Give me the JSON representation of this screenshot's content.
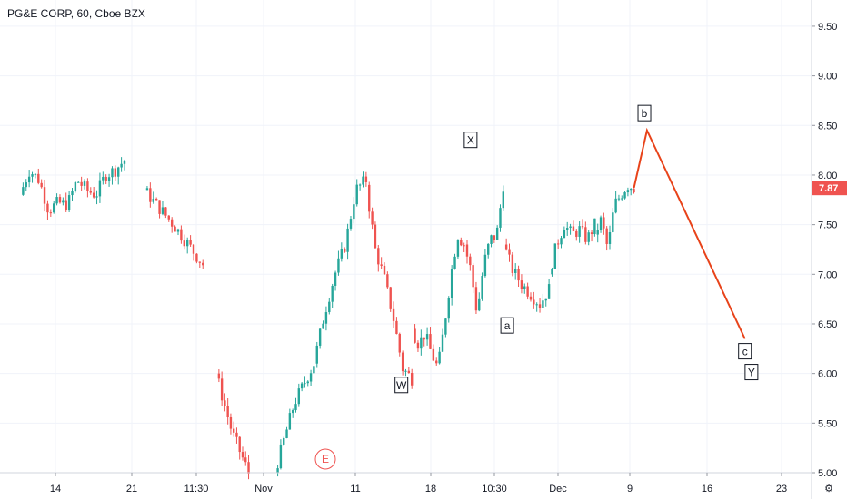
{
  "header": {
    "title": "PG&E CORP, 60, Cboe BZX"
  },
  "colors": {
    "up": "#26a69a",
    "down": "#ef5350",
    "projection": "#e8431a",
    "grid": "#f0f3fa",
    "badge": "#ef5350"
  },
  "chart_data": {
    "type": "candlestick",
    "title": "PG&E CORP, 60, Cboe BZX",
    "ylim": [
      5.0,
      9.6
    ],
    "y_ticks": [
      "5.00",
      "5.50",
      "6.00",
      "6.50",
      "7.00",
      "7.50",
      "8.00",
      "8.50",
      "9.00",
      "9.50"
    ],
    "x_ticks": [
      "14",
      "21",
      "11:30",
      "Nov",
      "11",
      "18",
      "10:30",
      "Dec",
      "9",
      "16",
      "23"
    ],
    "last_price": "7.87",
    "event_badge": "E",
    "segments": [
      {
        "start": 0,
        "end": 80,
        "values": [
          7.8,
          8.05,
          7.95,
          7.65,
          7.72,
          7.7,
          7.95,
          7.85,
          7.8,
          8.0,
          8.05,
          8.15
        ]
      },
      {
        "start": 95,
        "end": 140,
        "values": [
          7.85,
          7.5,
          7.1
        ]
      },
      {
        "start": 150,
        "end": 175,
        "values": [
          6.0,
          5.4,
          5.0
        ]
      },
      {
        "start": 195,
        "end": 225,
        "values": [
          5.0,
          5.7,
          6.1
        ]
      },
      {
        "start": 225,
        "end": 265,
        "values": [
          6.1,
          6.6,
          7.0,
          7.3,
          7.85,
          7.95
        ]
      },
      {
        "start": 265,
        "end": 300,
        "values": [
          7.9,
          7.25,
          6.95,
          6.55,
          6.05,
          5.95
        ]
      },
      {
        "start": 300,
        "end": 340,
        "values": [
          6.45,
          6.3,
          6.4,
          6.2,
          6.05,
          6.5,
          7.0,
          7.4,
          7.3
        ]
      },
      {
        "start": 340,
        "end": 370,
        "values": [
          7.3,
          7.05,
          6.6,
          7.1,
          7.35,
          7.4,
          7.9
        ]
      },
      {
        "start": 370,
        "end": 405,
        "values": [
          7.3,
          7.05,
          6.9,
          6.8,
          6.7,
          6.85
        ]
      },
      {
        "start": 405,
        "end": 440,
        "values": [
          7.0,
          7.3,
          7.5,
          7.4,
          7.45,
          7.35,
          7.5
        ]
      },
      {
        "start": 440,
        "end": 470,
        "values": [
          7.4,
          7.55,
          7.25,
          7.7,
          7.8,
          7.9,
          7.87
        ]
      }
    ],
    "projection": {
      "points": [
        [
          470,
          7.87
        ],
        [
          480,
          8.45
        ],
        [
          555,
          6.35
        ]
      ]
    },
    "annotations": [
      {
        "label": "W",
        "x": 292,
        "y": 5.88
      },
      {
        "label": "X",
        "x": 345,
        "y": 8.35
      },
      {
        "label": "a",
        "x": 373,
        "y": 6.48
      },
      {
        "label": "b",
        "x": 478,
        "y": 8.62
      },
      {
        "label": "c",
        "x": 555,
        "y": 6.22
      },
      {
        "label": "Y",
        "x": 560,
        "y": 6.01
      }
    ]
  }
}
